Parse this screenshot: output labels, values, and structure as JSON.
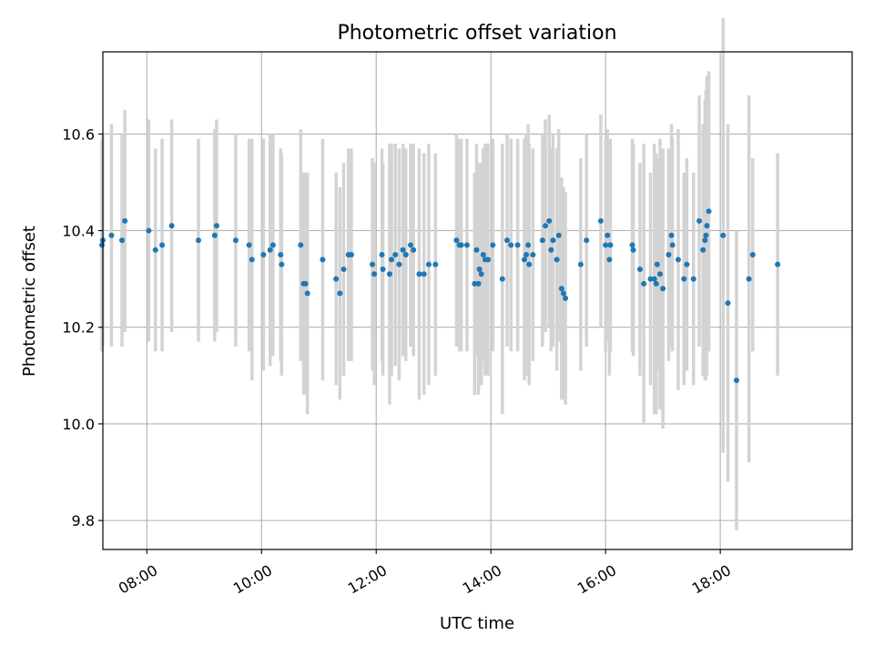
{
  "chart_data": {
    "type": "scatter",
    "title": "Photometric offset variation",
    "xlabel": "UTC time",
    "ylabel": "Photometric offset",
    "xlim": [
      "07:14",
      "20:18"
    ],
    "ylim": [
      9.74,
      10.77
    ],
    "x_ticks": [
      "08:00",
      "10:00",
      "12:00",
      "14:00",
      "16:00",
      "18:00"
    ],
    "y_ticks": [
      9.8,
      10.0,
      10.2,
      10.4,
      10.6
    ],
    "grid": true,
    "colors": {
      "point": "#1f77b4",
      "errorbar": "#d3d3d3",
      "grid": "#b0b0b0"
    },
    "points": [
      {
        "x": "07:13",
        "y": 10.37,
        "err": 0.22
      },
      {
        "x": "07:14",
        "y": 10.38,
        "err": 0.22
      },
      {
        "x": "07:23",
        "y": 10.39,
        "err": 0.23
      },
      {
        "x": "07:34",
        "y": 10.38,
        "err": 0.22
      },
      {
        "x": "07:37",
        "y": 10.42,
        "err": 0.23
      },
      {
        "x": "08:02",
        "y": 10.4,
        "err": 0.23
      },
      {
        "x": "08:09",
        "y": 10.36,
        "err": 0.21
      },
      {
        "x": "08:16",
        "y": 10.37,
        "err": 0.22
      },
      {
        "x": "08:26",
        "y": 10.41,
        "err": 0.22
      },
      {
        "x": "08:54",
        "y": 10.38,
        "err": 0.21
      },
      {
        "x": "09:11",
        "y": 10.39,
        "err": 0.22
      },
      {
        "x": "09:13",
        "y": 10.41,
        "err": 0.22
      },
      {
        "x": "09:33",
        "y": 10.38,
        "err": 0.22
      },
      {
        "x": "09:47",
        "y": 10.37,
        "err": 0.22
      },
      {
        "x": "09:50",
        "y": 10.34,
        "err": 0.25
      },
      {
        "x": "10:02",
        "y": 10.35,
        "err": 0.24
      },
      {
        "x": "10:09",
        "y": 10.36,
        "err": 0.24
      },
      {
        "x": "10:12",
        "y": 10.37,
        "err": 0.23
      },
      {
        "x": "10:20",
        "y": 10.35,
        "err": 0.22
      },
      {
        "x": "10:21",
        "y": 10.33,
        "err": 0.23
      },
      {
        "x": "10:41",
        "y": 10.37,
        "err": 0.24
      },
      {
        "x": "10:44",
        "y": 10.29,
        "err": 0.23
      },
      {
        "x": "10:46",
        "y": 10.29,
        "err": 0.23
      },
      {
        "x": "10:48",
        "y": 10.27,
        "err": 0.25
      },
      {
        "x": "11:04",
        "y": 10.34,
        "err": 0.25
      },
      {
        "x": "11:18",
        "y": 10.3,
        "err": 0.22
      },
      {
        "x": "11:22",
        "y": 10.27,
        "err": 0.22
      },
      {
        "x": "11:26",
        "y": 10.32,
        "err": 0.22
      },
      {
        "x": "11:31",
        "y": 10.35,
        "err": 0.22
      },
      {
        "x": "11:34",
        "y": 10.35,
        "err": 0.22
      },
      {
        "x": "11:56",
        "y": 10.33,
        "err": 0.22
      },
      {
        "x": "11:58",
        "y": 10.31,
        "err": 0.23
      },
      {
        "x": "12:06",
        "y": 10.35,
        "err": 0.22
      },
      {
        "x": "12:07",
        "y": 10.32,
        "err": 0.22
      },
      {
        "x": "12:14",
        "y": 10.31,
        "err": 0.27
      },
      {
        "x": "12:16",
        "y": 10.34,
        "err": 0.24
      },
      {
        "x": "12:20",
        "y": 10.35,
        "err": 0.23
      },
      {
        "x": "12:24",
        "y": 10.33,
        "err": 0.24
      },
      {
        "x": "12:28",
        "y": 10.36,
        "err": 0.22
      },
      {
        "x": "12:31",
        "y": 10.35,
        "err": 0.22
      },
      {
        "x": "12:36",
        "y": 10.37,
        "err": 0.21
      },
      {
        "x": "12:39",
        "y": 10.36,
        "err": 0.22
      },
      {
        "x": "12:45",
        "y": 10.31,
        "err": 0.26
      },
      {
        "x": "12:50",
        "y": 10.31,
        "err": 0.25
      },
      {
        "x": "12:55",
        "y": 10.33,
        "err": 0.25
      },
      {
        "x": "13:02",
        "y": 10.33,
        "err": 0.23
      },
      {
        "x": "13:24",
        "y": 10.38,
        "err": 0.22
      },
      {
        "x": "13:27",
        "y": 10.37,
        "err": 0.22
      },
      {
        "x": "13:29",
        "y": 10.37,
        "err": 0.22
      },
      {
        "x": "13:35",
        "y": 10.37,
        "err": 0.22
      },
      {
        "x": "13:43",
        "y": 10.29,
        "err": 0.23
      },
      {
        "x": "13:45",
        "y": 10.36,
        "err": 0.22
      },
      {
        "x": "13:47",
        "y": 10.29,
        "err": 0.23
      },
      {
        "x": "13:48",
        "y": 10.32,
        "err": 0.22
      },
      {
        "x": "13:50",
        "y": 10.31,
        "err": 0.23
      },
      {
        "x": "13:52",
        "y": 10.35,
        "err": 0.22
      },
      {
        "x": "13:54",
        "y": 10.34,
        "err": 0.24
      },
      {
        "x": "13:57",
        "y": 10.34,
        "err": 0.24
      },
      {
        "x": "14:02",
        "y": 10.37,
        "err": 0.22
      },
      {
        "x": "14:12",
        "y": 10.3,
        "err": 0.28
      },
      {
        "x": "14:17",
        "y": 10.38,
        "err": 0.22
      },
      {
        "x": "14:21",
        "y": 10.37,
        "err": 0.22
      },
      {
        "x": "14:28",
        "y": 10.37,
        "err": 0.22
      },
      {
        "x": "14:35",
        "y": 10.34,
        "err": 0.25
      },
      {
        "x": "14:37",
        "y": 10.35,
        "err": 0.25
      },
      {
        "x": "14:39",
        "y": 10.37,
        "err": 0.25
      },
      {
        "x": "14:40",
        "y": 10.33,
        "err": 0.25
      },
      {
        "x": "14:44",
        "y": 10.35,
        "err": 0.22
      },
      {
        "x": "14:54",
        "y": 10.38,
        "err": 0.22
      },
      {
        "x": "14:57",
        "y": 10.41,
        "err": 0.22
      },
      {
        "x": "15:01",
        "y": 10.42,
        "err": 0.22
      },
      {
        "x": "15:03",
        "y": 10.36,
        "err": 0.21
      },
      {
        "x": "15:05",
        "y": 10.38,
        "err": 0.22
      },
      {
        "x": "15:09",
        "y": 10.34,
        "err": 0.23
      },
      {
        "x": "15:11",
        "y": 10.39,
        "err": 0.22
      },
      {
        "x": "15:14",
        "y": 10.28,
        "err": 0.23
      },
      {
        "x": "15:16",
        "y": 10.27,
        "err": 0.22
      },
      {
        "x": "15:18",
        "y": 10.26,
        "err": 0.22
      },
      {
        "x": "15:34",
        "y": 10.33,
        "err": 0.22
      },
      {
        "x": "15:40",
        "y": 10.38,
        "err": 0.22
      },
      {
        "x": "15:55",
        "y": 10.42,
        "err": 0.22
      },
      {
        "x": "16:00",
        "y": 10.37,
        "err": 0.22
      },
      {
        "x": "16:02",
        "y": 10.39,
        "err": 0.22
      },
      {
        "x": "16:04",
        "y": 10.34,
        "err": 0.24
      },
      {
        "x": "16:05",
        "y": 10.37,
        "err": 0.22
      },
      {
        "x": "16:28",
        "y": 10.37,
        "err": 0.22
      },
      {
        "x": "16:29",
        "y": 10.36,
        "err": 0.22
      },
      {
        "x": "16:36",
        "y": 10.32,
        "err": 0.22
      },
      {
        "x": "16:40",
        "y": 10.29,
        "err": 0.29
      },
      {
        "x": "16:47",
        "y": 10.3,
        "err": 0.22
      },
      {
        "x": "16:51",
        "y": 10.3,
        "err": 0.28
      },
      {
        "x": "16:53",
        "y": 10.29,
        "err": 0.27
      },
      {
        "x": "16:54",
        "y": 10.33,
        "err": 0.22
      },
      {
        "x": "16:57",
        "y": 10.31,
        "err": 0.28
      },
      {
        "x": "17:00",
        "y": 10.28,
        "err": 0.29
      },
      {
        "x": "17:06",
        "y": 10.35,
        "err": 0.22
      },
      {
        "x": "17:09",
        "y": 10.39,
        "err": 0.23
      },
      {
        "x": "17:10",
        "y": 10.37,
        "err": 0.22
      },
      {
        "x": "17:16",
        "y": 10.34,
        "err": 0.27
      },
      {
        "x": "17:22",
        "y": 10.3,
        "err": 0.22
      },
      {
        "x": "17:25",
        "y": 10.33,
        "err": 0.22
      },
      {
        "x": "17:32",
        "y": 10.3,
        "err": 0.22
      },
      {
        "x": "17:38",
        "y": 10.42,
        "err": 0.26
      },
      {
        "x": "17:42",
        "y": 10.36,
        "err": 0.26
      },
      {
        "x": "17:44",
        "y": 10.38,
        "err": 0.29
      },
      {
        "x": "17:45",
        "y": 10.39,
        "err": 0.3
      },
      {
        "x": "17:46",
        "y": 10.41,
        "err": 0.31
      },
      {
        "x": "17:48",
        "y": 10.44,
        "err": 0.29
      },
      {
        "x": "18:03",
        "y": 10.39,
        "err": 0.45
      },
      {
        "x": "18:08",
        "y": 10.25,
        "err": 0.37
      },
      {
        "x": "18:17",
        "y": 10.09,
        "err": 0.31
      },
      {
        "x": "18:30",
        "y": 10.3,
        "err": 0.38
      },
      {
        "x": "18:34",
        "y": 10.35,
        "err": 0.2
      },
      {
        "x": "19:00",
        "y": 10.33,
        "err": 0.23
      }
    ]
  }
}
